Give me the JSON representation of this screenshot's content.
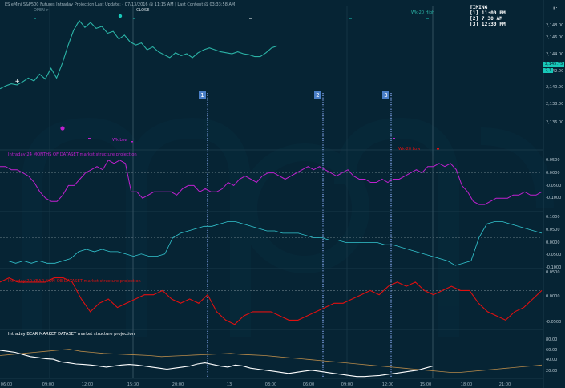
{
  "header": {
    "title": "ES eMini S&P500 Futures  Intraday Projection Last Update:  - 07/13/2016 @ 11:15 AM | Last Content @ 03:33:58 AM",
    "open_label": "OPEN >",
    "close_label": "CLOSE",
    "wk_high_label": "Wk-20 High"
  },
  "timing": {
    "title": "TIMING",
    "items": [
      "[1] 11:00 PM",
      "[2] 7:30 AM",
      "[3] 12:30 PM"
    ]
  },
  "markers": [
    "1",
    "2",
    "3"
  ],
  "panels": [
    {
      "title": "",
      "axis_labels": [
        "2,148.00",
        "2,146.00",
        "2,144.00",
        "2,142.00",
        "2,140.00",
        "2,138.00",
        "2,136.00"
      ],
      "price_tag": "2,145.75",
      "price_tag2": "2,1"
    },
    {
      "title": "Intraday 24 MONTHS OF DATASET market structure projection",
      "axis_labels": [
        "0.0500",
        "0.0000",
        "-0.0500",
        "-0.1000"
      ]
    },
    {
      "title": "",
      "axis_labels": [
        "0.1000",
        "0.0500",
        "0.0000",
        "-0.0500",
        "-0.1000"
      ]
    },
    {
      "title": "Intraday 20 YEAR NON-QE DATASET market structure projection",
      "axis_labels": [
        "0.0500",
        "0.0000",
        "-0.0500"
      ]
    },
    {
      "title": "Intraday BEAR MARKET DATASET market structure projection",
      "axis_labels": [
        "80.00",
        "60.00",
        "40.00",
        "20.00"
      ]
    }
  ],
  "top_notes": {
    "wk_low_left": "Wk Low",
    "wk_low_right": "Wk-20 Low"
  },
  "time_axis": [
    "06:00",
    "09:00",
    "12:00",
    "15:30",
    "20:00",
    "13",
    "03:00",
    "06:00",
    "09:00",
    "12:00",
    "15:00",
    "18:00",
    "21:00"
  ],
  "colors": {
    "bg": "#062434",
    "price": "#2bb3a6",
    "proj1": "#c020d0",
    "proj2": "#33c6d0",
    "proj3": "#e01010",
    "proj4": "#ffffff",
    "proj4b": "#b78a4a",
    "marker": "#4a7fc7",
    "tag": "#18c8b8"
  },
  "chart_data": [
    {
      "type": "line",
      "title": "",
      "series": [
        {
          "values": [
            2141.2,
            2141.5,
            2141.7,
            2141.6,
            2141.9,
            2142.3,
            2142.0,
            2142.7,
            2142.2,
            2143.3,
            2142.3,
            2143.8,
            2145.6,
            2147.2,
            2148.2,
            2147.5,
            2148.0,
            2147.4,
            2147.6,
            2146.9,
            2147.1,
            2146.3,
            2146.7,
            2146.0,
            2145.7,
            2145.9,
            2145.2,
            2145.5,
            2145.0,
            2144.7,
            2144.4,
            2144.9,
            2144.6,
            2144.8,
            2144.4,
            2144.9,
            2145.2,
            2145.4,
            2145.2,
            2145.0,
            2144.9,
            2144.8,
            2145.0,
            2144.8,
            2144.7,
            2144.5,
            2144.5,
            2144.9,
            2145.4,
            2145.6
          ]
        }
      ]
    },
    {
      "type": "line",
      "title": "Intraday 24 MONTHS OF DATASET market structure projection",
      "series": [
        {
          "values": [
            0.02,
            0.02,
            0.01,
            0.01,
            0.0,
            -0.01,
            -0.03,
            -0.06,
            -0.08,
            -0.09,
            -0.09,
            -0.07,
            -0.04,
            -0.04,
            -0.02,
            0.0,
            0.01,
            0.02,
            0.01,
            0.04,
            0.03,
            0.04,
            0.03,
            -0.06,
            -0.06,
            -0.08,
            -0.07,
            -0.06,
            -0.06,
            -0.06,
            -0.06,
            -0.07,
            -0.05,
            -0.04,
            -0.04,
            -0.06,
            -0.05,
            -0.06,
            -0.06,
            -0.05,
            -0.03,
            -0.04,
            -0.02,
            -0.01,
            -0.02,
            -0.03,
            -0.01,
            0.0,
            0.0,
            -0.01,
            -0.02,
            -0.01,
            0.0,
            0.01,
            0.02,
            0.01,
            0.02,
            0.01,
            0.0,
            -0.01,
            0.0,
            0.01,
            -0.01,
            -0.02,
            -0.02,
            -0.03,
            -0.03,
            -0.02,
            -0.03,
            -0.02,
            -0.02,
            -0.01,
            0.0,
            0.01,
            0.0,
            0.02,
            0.02,
            0.03,
            0.02,
            0.03,
            0.01,
            -0.04,
            -0.06,
            -0.09,
            -0.1,
            -0.1,
            -0.09,
            -0.08,
            -0.08,
            -0.08,
            -0.07,
            -0.07,
            -0.06,
            -0.07,
            -0.07,
            -0.06
          ]
        }
      ]
    },
    {
      "type": "line",
      "title": "",
      "series": [
        {
          "values": [
            -0.1,
            -0.1,
            -0.11,
            -0.1,
            -0.11,
            -0.1,
            -0.11,
            -0.11,
            -0.1,
            -0.09,
            -0.06,
            -0.05,
            -0.06,
            -0.05,
            -0.06,
            -0.06,
            -0.07,
            -0.08,
            -0.07,
            -0.08,
            -0.08,
            -0.07,
            0.0,
            0.02,
            0.03,
            0.04,
            0.05,
            0.05,
            0.06,
            0.07,
            0.07,
            0.06,
            0.05,
            0.04,
            0.03,
            0.03,
            0.02,
            0.02,
            0.02,
            0.01,
            0.0,
            0.0,
            -0.01,
            -0.01,
            -0.02,
            -0.02,
            -0.02,
            -0.02,
            -0.02,
            -0.03,
            -0.03,
            -0.04,
            -0.05,
            -0.06,
            -0.07,
            -0.08,
            -0.09,
            -0.1,
            -0.12,
            -0.11,
            -0.1,
            0.0,
            0.06,
            0.07,
            0.07,
            0.06,
            0.05,
            0.04,
            0.03,
            0.02
          ]
        }
      ]
    },
    {
      "type": "line",
      "title": "Intraday 20 YEAR NON-QE DATASET market structure projection",
      "series": [
        {
          "values": [
            0.02,
            0.03,
            0.02,
            0.02,
            0.02,
            0.02,
            0.03,
            0.03,
            0.02,
            -0.02,
            -0.05,
            -0.03,
            -0.02,
            -0.04,
            -0.03,
            -0.02,
            -0.01,
            -0.01,
            0.0,
            -0.02,
            -0.03,
            -0.02,
            -0.03,
            -0.01,
            -0.05,
            -0.07,
            -0.08,
            -0.06,
            -0.05,
            -0.05,
            -0.05,
            -0.06,
            -0.07,
            -0.07,
            -0.06,
            -0.05,
            -0.04,
            -0.03,
            -0.03,
            -0.02,
            -0.01,
            0.0,
            -0.01,
            0.01,
            0.02,
            0.01,
            0.02,
            0.0,
            -0.01,
            0.0,
            0.01,
            0.0,
            0.0,
            -0.03,
            -0.05,
            -0.06,
            -0.07,
            -0.05,
            -0.04,
            -0.02,
            0.0
          ]
        }
      ]
    },
    {
      "type": "line",
      "title": "Intraday BEAR MARKET DATASET market structure projection",
      "series": [
        {
          "values": [
            52,
            50,
            48,
            44,
            40,
            38,
            36,
            35,
            30,
            28,
            26,
            25,
            24,
            22,
            20,
            22,
            24,
            25,
            24,
            22,
            20,
            18,
            16,
            18,
            20,
            22,
            26,
            28,
            25,
            22,
            20,
            24,
            22,
            18,
            16,
            14,
            12,
            10,
            8,
            10,
            12,
            14,
            12,
            10,
            8,
            6,
            4,
            2,
            2,
            3,
            4,
            6,
            8,
            10,
            12,
            14,
            18,
            22
          ]
        },
        {
          "values": [
            42,
            44,
            46,
            48,
            50,
            52,
            54,
            50,
            48,
            46,
            45,
            44,
            43,
            42,
            40,
            41,
            42,
            43,
            44,
            45,
            46,
            44,
            43,
            42,
            40,
            38,
            36,
            34,
            32,
            30,
            28,
            26,
            24,
            22,
            20,
            18,
            16,
            14,
            12,
            10,
            10,
            12,
            14,
            16,
            18,
            20,
            22,
            24
          ]
        }
      ]
    }
  ]
}
